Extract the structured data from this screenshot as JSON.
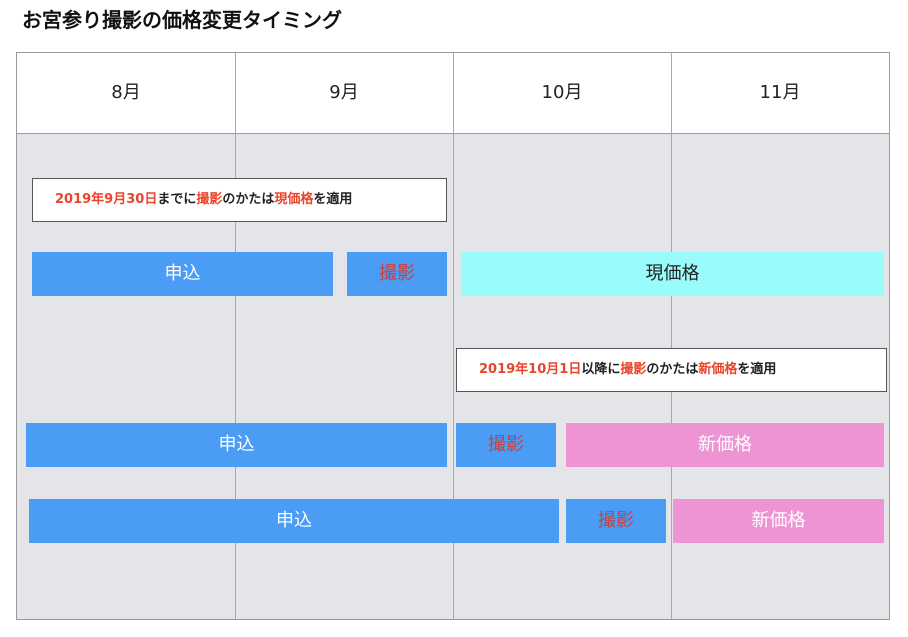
{
  "title": "お宮参り撮影の価格変更タイミング",
  "months": [
    "8月",
    "9月",
    "10月",
    "11月"
  ],
  "note1": {
    "date": "2019年9月30日",
    "t1": "までに",
    "shoot": "撮影",
    "t2": "のかたは",
    "price": "現価格",
    "t3": "を適用"
  },
  "note2": {
    "date": "2019年10月1日",
    "t1": "以降に",
    "shoot": "撮影",
    "t2": "のかたは",
    "price": "新価格",
    "t3": "を適用"
  },
  "row1": {
    "apply": "申込",
    "shoot": "撮影",
    "price": "現価格"
  },
  "row2": {
    "apply": "申込",
    "shoot": "撮影",
    "price": "新価格"
  },
  "row3": {
    "apply": "申込",
    "shoot": "撮影",
    "price": "新価格"
  },
  "colors": {
    "apply_bar": "#4a9cf5",
    "shoot_text": "#c94040",
    "current_price_bar": "#9afbfb",
    "new_price_bar": "#ee94d5",
    "highlight_text": "#e8452c"
  }
}
